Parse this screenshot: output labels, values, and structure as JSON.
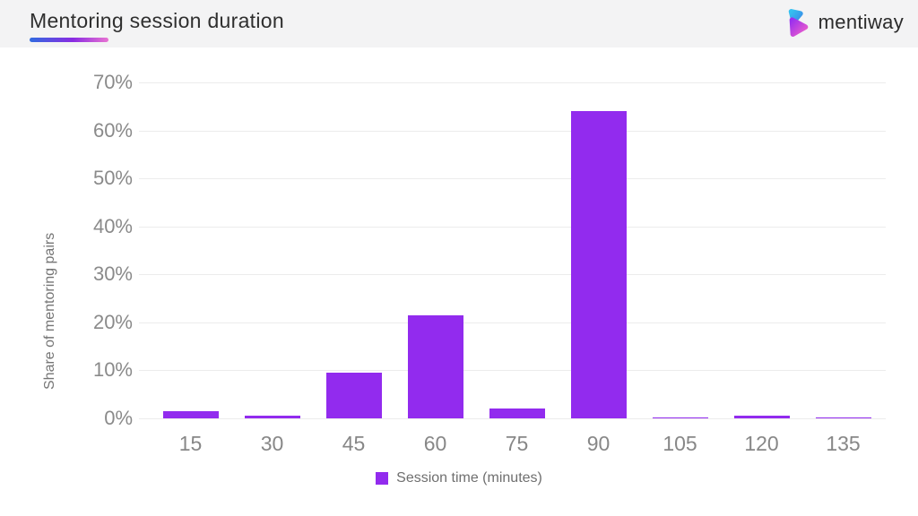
{
  "header": {
    "title": "Mentoring session duration",
    "logo_text": "mentiway"
  },
  "colors": {
    "bar": "#922bee",
    "header_background": "#f3f3f4",
    "underline_gradient": [
      "#2f6be0",
      "#8a2be2",
      "#e973d2"
    ],
    "logo_blue": "#35b0ee",
    "logo_purple": "#a22ee8",
    "logo_pink": "#ee5ecb",
    "gridline": "#ececec",
    "axis_text": "#8a8a8a"
  },
  "chart_data": {
    "type": "bar",
    "title": "Mentoring session duration",
    "categories": [
      "15",
      "30",
      "45",
      "60",
      "75",
      "90",
      "105",
      "120",
      "135"
    ],
    "values": [
      1.5,
      0.5,
      9.5,
      21.5,
      2,
      64,
      0.2,
      0.5,
      0.2
    ],
    "series_name": "Session time (minutes)",
    "xlabel": "Session time (minutes)",
    "ylabel": "Share of mentoring pairs",
    "ylim": [
      0,
      70
    ],
    "ytick_labels": [
      "0%",
      "10%",
      "20%",
      "30%",
      "40%",
      "50%",
      "60%",
      "70%"
    ],
    "grid": "horizontal",
    "legend_position": "bottom",
    "legend_label": "Session time (minutes)"
  }
}
